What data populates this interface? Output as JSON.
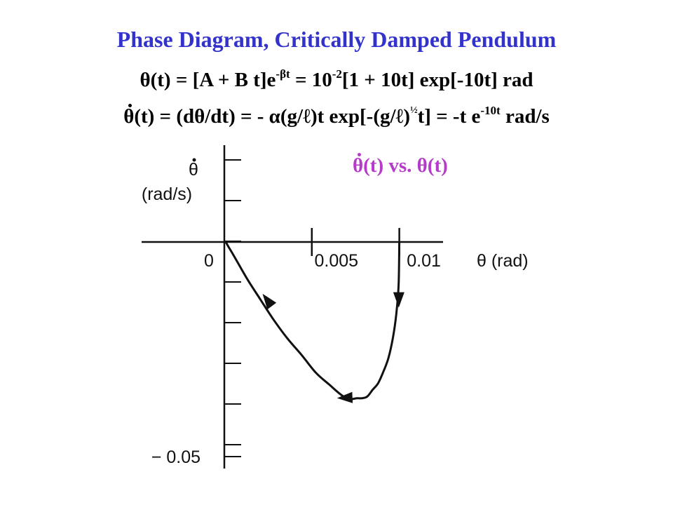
{
  "title": "Phase Diagram, Critically Damped Pendulum",
  "equation_theta": {
    "lhs": "θ(t) = [A + B t]e",
    "exp1": "-βt",
    "mid": " = 10",
    "exp2": "-2",
    "rhs": "[1 + 10t] exp[-10t] rad"
  },
  "equation_thetadot": {
    "theta": "θ",
    "part1": "(t) = (dθ/dt) = - α(g/ℓ)t exp[-(g/ℓ)",
    "half": "½",
    "part2": "t] = -t e",
    "exp": "-10t",
    "part3": " rad/s"
  },
  "legend": {
    "theta": "θ",
    "text": "(t) vs. θ(t)",
    "color": "#b43cc8"
  },
  "chart_data": {
    "type": "line",
    "xlabel": "θ (rad)",
    "ylabel": "θ̇ (rad/s)",
    "ylabel_symbol": "θ",
    "ylabel_unit": "(rad/s)",
    "xlim": [
      0,
      0.0125
    ],
    "ylim": [
      -0.05,
      0.0225
    ],
    "x_ticks": [
      {
        "value": 0,
        "label": "0"
      },
      {
        "value": 0.005,
        "label": "0.005"
      },
      {
        "value": 0.01,
        "label": "0.01"
      }
    ],
    "y_ticks": [
      {
        "value": -0.05,
        "label": "− 0.05"
      }
    ],
    "series": [
      {
        "x": [
          0.01,
          0.00996,
          0.00983,
          0.00964,
          0.00938,
          0.0091,
          0.00879,
          0.00848,
          0.00817,
          0.00787,
          0.00758,
          0.00731,
          0.00705,
          0.00658,
          0.00599,
          0.00524,
          0.00443,
          0.00359,
          0.00278,
          0.00203,
          0.00138,
          0.00085,
          0.00047,
          0.00022,
          0.0001
        ],
        "y": [
          0,
          -0.01,
          -0.0167,
          -0.0222,
          -0.027,
          -0.0301,
          -0.0329,
          -0.0344,
          -0.036,
          -0.0364,
          -0.0364,
          -0.0366,
          -0.0366,
          -0.0353,
          -0.0332,
          -0.0305,
          -0.0264,
          -0.0224,
          -0.0179,
          -0.0132,
          -0.0091,
          -0.0054,
          -0.0027,
          -0.001,
          -0.0001
        ]
      }
    ],
    "arrows": [
      {
        "x": 0.00997,
        "y": -0.0135,
        "direction": "down"
      },
      {
        "x": 0.00688,
        "y": -0.0363,
        "direction": "left"
      },
      {
        "x": 0.00245,
        "y": -0.0135,
        "direction": "up-left"
      }
    ],
    "line_color": "#111111",
    "grid": false
  }
}
